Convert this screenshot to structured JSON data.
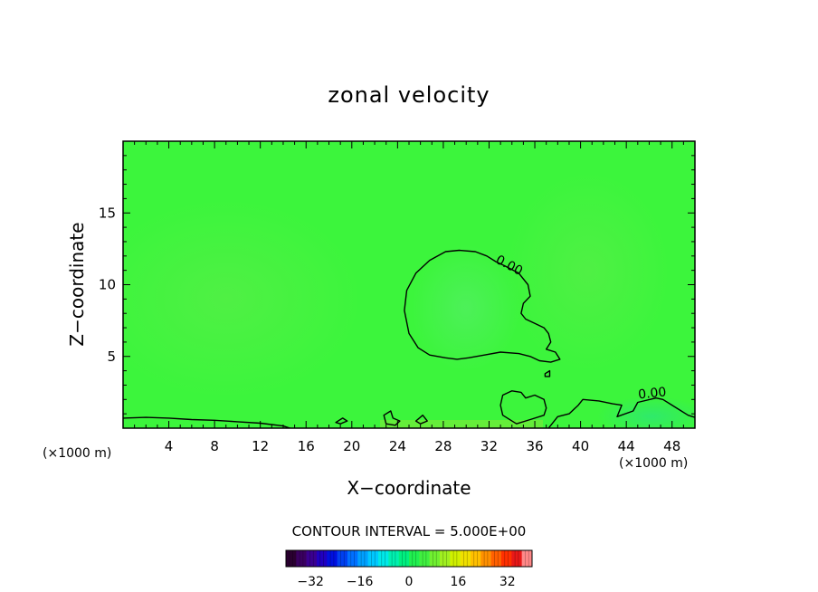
{
  "chart_data": {
    "type": "heatmap",
    "title": "zonal velocity",
    "xlabel": "X−coordinate",
    "ylabel": "Z−coordinate",
    "x_unit_left": "(×1000 m)",
    "x_unit_right": "(×1000 m)",
    "xlim": [
      0,
      50
    ],
    "ylim": [
      0,
      20
    ],
    "x_ticks": [
      4,
      8,
      12,
      16,
      20,
      24,
      28,
      32,
      36,
      40,
      44,
      48
    ],
    "x_tick_labels": [
      "4",
      "8",
      "12",
      "16",
      "20",
      "24",
      "28",
      "32",
      "36",
      "40",
      "44",
      "48"
    ],
    "y_ticks": [
      5,
      10,
      15
    ],
    "y_tick_labels": [
      "5",
      "10",
      "15"
    ],
    "field_background_color": "#3cf53c",
    "contour_level": 0.0,
    "contour_labels": [
      "0.00",
      "0.00"
    ],
    "contours": [
      {
        "level": "0.00",
        "closed": true,
        "points": [
          [
            30.2,
            4.9
          ],
          [
            31.6,
            5.1
          ],
          [
            33.0,
            5.3
          ],
          [
            34.6,
            5.2
          ],
          [
            35.6,
            5.0
          ],
          [
            36.4,
            4.7
          ],
          [
            37.4,
            4.6
          ],
          [
            38.2,
            4.8
          ],
          [
            37.8,
            5.3
          ],
          [
            37.0,
            5.5
          ],
          [
            37.4,
            6.0
          ],
          [
            37.2,
            6.6
          ],
          [
            36.8,
            7.0
          ],
          [
            36.0,
            7.3
          ],
          [
            35.2,
            7.6
          ],
          [
            34.8,
            8.0
          ],
          [
            35.0,
            8.7
          ],
          [
            35.6,
            9.2
          ],
          [
            35.4,
            10.0
          ],
          [
            34.6,
            10.8
          ],
          [
            33.4,
            11.3
          ],
          [
            32.6,
            11.6
          ],
          [
            31.8,
            12.0
          ],
          [
            30.8,
            12.3
          ],
          [
            29.4,
            12.4
          ],
          [
            28.2,
            12.3
          ],
          [
            26.8,
            11.7
          ],
          [
            25.6,
            10.8
          ],
          [
            24.8,
            9.6
          ],
          [
            24.6,
            8.2
          ],
          [
            25.0,
            6.6
          ],
          [
            25.8,
            5.6
          ],
          [
            26.8,
            5.1
          ],
          [
            28.2,
            4.9
          ],
          [
            29.2,
            4.8
          ]
        ]
      },
      {
        "level": "0.00",
        "closed": false,
        "points": [
          [
            0.0,
            0.7
          ],
          [
            2.0,
            0.75
          ],
          [
            4.0,
            0.7
          ],
          [
            6.0,
            0.6
          ],
          [
            8.0,
            0.55
          ],
          [
            10.0,
            0.45
          ],
          [
            12.0,
            0.35
          ],
          [
            14.0,
            0.15
          ],
          [
            14.6,
            0.0
          ]
        ]
      },
      {
        "level": "0.00",
        "closed": true,
        "points": [
          [
            34.4,
            0.3
          ],
          [
            35.6,
            0.6
          ],
          [
            36.8,
            0.9
          ],
          [
            37.0,
            1.4
          ],
          [
            36.8,
            2.0
          ],
          [
            36.0,
            2.3
          ],
          [
            35.2,
            2.1
          ],
          [
            34.8,
            2.5
          ],
          [
            34.0,
            2.6
          ],
          [
            33.2,
            2.3
          ],
          [
            33.0,
            1.6
          ],
          [
            33.2,
            0.9
          ]
        ]
      },
      {
        "level": "0.00",
        "closed": false,
        "points": [
          [
            37.2,
            0.0
          ],
          [
            38.0,
            0.8
          ],
          [
            39.0,
            1.0
          ],
          [
            39.8,
            1.6
          ],
          [
            40.2,
            2.0
          ],
          [
            41.6,
            1.9
          ],
          [
            42.8,
            1.7
          ],
          [
            43.6,
            1.6
          ],
          [
            43.2,
            0.8
          ],
          [
            44.6,
            1.2
          ],
          [
            45.0,
            1.8
          ],
          [
            46.6,
            2.1
          ],
          [
            47.2,
            2.0
          ],
          [
            48.0,
            1.6
          ],
          [
            48.6,
            1.3
          ],
          [
            49.4,
            0.9
          ],
          [
            50.0,
            0.75
          ]
        ]
      },
      {
        "level": "0.00",
        "closed": true,
        "points": [
          [
            22.8,
            0.9
          ],
          [
            23.4,
            1.2
          ],
          [
            23.6,
            0.7
          ],
          [
            24.2,
            0.5
          ],
          [
            23.8,
            0.2
          ],
          [
            23.0,
            0.3
          ]
        ]
      },
      {
        "level": "0.00",
        "closed": true,
        "points": [
          [
            25.6,
            0.5
          ],
          [
            26.2,
            0.9
          ],
          [
            26.6,
            0.5
          ],
          [
            26.0,
            0.3
          ]
        ]
      },
      {
        "level": "0.00",
        "closed": true,
        "points": [
          [
            18.6,
            0.4
          ],
          [
            19.2,
            0.7
          ],
          [
            19.6,
            0.5
          ],
          [
            19.0,
            0.3
          ]
        ]
      },
      {
        "level": "0.00",
        "closed": true,
        "points": [
          [
            36.9,
            3.8
          ],
          [
            37.3,
            4.0
          ],
          [
            37.3,
            3.6
          ],
          [
            36.9,
            3.6
          ]
        ]
      }
    ],
    "colorbar": {
      "title": "CONTOUR INTERVAL = 5.000E+00",
      "min": -40,
      "max": 40,
      "tick_values": [
        -32,
        -16,
        0,
        16,
        32
      ],
      "tick_labels": [
        "−32",
        "−16",
        "0",
        "16",
        "32"
      ],
      "colors": [
        "#2a0030",
        "#3a0060",
        "#3a0090",
        "#2000c0",
        "#0010e0",
        "#0040f0",
        "#0070ff",
        "#00a0ff",
        "#00c8ff",
        "#00e8e8",
        "#00f0b0",
        "#00f080",
        "#20f050",
        "#40f040",
        "#70f030",
        "#a0f020",
        "#d0f000",
        "#f0e000",
        "#ffc000",
        "#ff9000",
        "#ff6000",
        "#ff3000",
        "#e81818",
        "#ff8888"
      ]
    }
  }
}
